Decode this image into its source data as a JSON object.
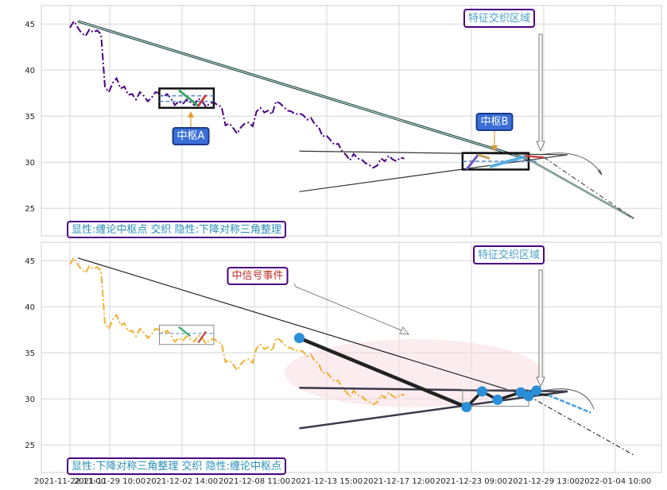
{
  "chart_data": [
    {
      "type": "line",
      "panel": "top",
      "ylim": [
        22,
        47
      ],
      "y_ticks": [
        25,
        30,
        35,
        40,
        45
      ],
      "x_tick_labels": [
        "2021-11-22 11:00",
        "2021-11-29 10:00",
        "2021-12-02 14:00",
        "2021-12-08 11:00",
        "2021-12-13 15:00",
        "2021-12-17 12:00",
        "2021-12-23 09:00",
        "2021-12-29 13:00",
        "2022-01-04 10:00"
      ],
      "grid": true,
      "price_line_color": "#4b0082",
      "price_series": [
        [
          0,
          44.6
        ],
        [
          1,
          45.3
        ],
        [
          2,
          44.6
        ],
        [
          3,
          44.0
        ],
        [
          4,
          43.7
        ],
        [
          5,
          44.4
        ],
        [
          6,
          44.1
        ],
        [
          7,
          44.3
        ],
        [
          8,
          43.9
        ],
        [
          9,
          38.2
        ],
        [
          10,
          37.6
        ],
        [
          11,
          38.6
        ],
        [
          12,
          39.1
        ],
        [
          13,
          38.0
        ],
        [
          14,
          38.2
        ],
        [
          15,
          37.3
        ],
        [
          16,
          37.4
        ],
        [
          17,
          36.8
        ],
        [
          18,
          37.6
        ],
        [
          19,
          37.2
        ],
        [
          20,
          36.6
        ],
        [
          21,
          37.0
        ],
        [
          22,
          37.6
        ],
        [
          23,
          37.5
        ],
        [
          24,
          37.1
        ],
        [
          25,
          37.4
        ],
        [
          26,
          36.9
        ],
        [
          27,
          36.2
        ],
        [
          28,
          36.6
        ],
        [
          29,
          36.3
        ],
        [
          30,
          36.8
        ],
        [
          31,
          36.5
        ],
        [
          32,
          36.2
        ],
        [
          33,
          36.9
        ],
        [
          34,
          36.6
        ],
        [
          35,
          36.0
        ],
        [
          36,
          36.4
        ],
        [
          37,
          36.5
        ],
        [
          38,
          36.2
        ],
        [
          39,
          36.0
        ],
        [
          40,
          34.0
        ],
        [
          41,
          34.2
        ],
        [
          42,
          33.7
        ],
        [
          43,
          33.1
        ],
        [
          44,
          33.8
        ],
        [
          45,
          34.2
        ],
        [
          46,
          34.3
        ],
        [
          47,
          33.9
        ],
        [
          48,
          35.5
        ],
        [
          49,
          35.9
        ],
        [
          50,
          35.4
        ],
        [
          51,
          35.6
        ],
        [
          52,
          35.2
        ],
        [
          53,
          36.6
        ],
        [
          54,
          36.4
        ],
        [
          55,
          36.0
        ],
        [
          56,
          35.6
        ],
        [
          57,
          35.5
        ],
        [
          58,
          35.2
        ],
        [
          59,
          35.3
        ],
        [
          60,
          35.1
        ],
        [
          61,
          34.6
        ],
        [
          62,
          34.8
        ],
        [
          63,
          34.1
        ],
        [
          64,
          33.8
        ],
        [
          65,
          32.8
        ],
        [
          66,
          32.9
        ],
        [
          67,
          32.4
        ],
        [
          68,
          31.9
        ],
        [
          69,
          32.0
        ],
        [
          70,
          31.2
        ],
        [
          71,
          30.8
        ],
        [
          72,
          30.2
        ],
        [
          73,
          30.9
        ],
        [
          74,
          30.4
        ],
        [
          75,
          30.3
        ],
        [
          76,
          29.9
        ],
        [
          77,
          29.7
        ],
        [
          78,
          29.4
        ],
        [
          79,
          29.6
        ],
        [
          80,
          30.4
        ],
        [
          81,
          30.1
        ],
        [
          82,
          30.7
        ],
        [
          83,
          30.3
        ],
        [
          84,
          30.1
        ],
        [
          85,
          30.5
        ],
        [
          86,
          30.4
        ]
      ],
      "legend_text": "显性:缠论中枢点 交织 隐性:下降对称三角整理",
      "annotations": [
        {
          "text": "特征交织区域",
          "color": "#4aa0c8",
          "border": "#4b0082",
          "fill": "#ffffff"
        },
        {
          "text": "中枢A",
          "color": "#ffffff",
          "border": "#1b3a8a",
          "fill": "#3a6fd8"
        },
        {
          "text": "中枢B",
          "color": "#ffffff",
          "border": "#1b3a8a",
          "fill": "#3a6fd8"
        }
      ]
    },
    {
      "type": "line",
      "panel": "bottom",
      "ylim": [
        22,
        47
      ],
      "y_ticks": [
        25,
        30,
        35,
        40,
        45
      ],
      "x_tick_labels": [
        "2021-11-22 11:00",
        "2021-11-29 10:00",
        "2021-12-02 14:00",
        "2021-12-08 11:00",
        "2021-12-13 15:00",
        "2021-12-17 12:00",
        "2021-12-23 09:00",
        "2021-12-29 13:00",
        "2022-01-04 10:00"
      ],
      "grid": true,
      "price_line_color": "#f0b030",
      "price_series": [
        [
          0,
          44.6
        ],
        [
          1,
          45.3
        ],
        [
          2,
          44.6
        ],
        [
          3,
          44.0
        ],
        [
          4,
          43.7
        ],
        [
          5,
          44.4
        ],
        [
          6,
          44.1
        ],
        [
          7,
          44.3
        ],
        [
          8,
          43.9
        ],
        [
          9,
          38.2
        ],
        [
          10,
          37.6
        ],
        [
          11,
          38.6
        ],
        [
          12,
          39.1
        ],
        [
          13,
          38.0
        ],
        [
          14,
          38.2
        ],
        [
          15,
          37.3
        ],
        [
          16,
          37.4
        ],
        [
          17,
          36.8
        ],
        [
          18,
          37.6
        ],
        [
          19,
          37.2
        ],
        [
          20,
          36.6
        ],
        [
          21,
          37.0
        ],
        [
          22,
          37.6
        ],
        [
          23,
          37.5
        ],
        [
          24,
          37.1
        ],
        [
          25,
          37.4
        ],
        [
          26,
          36.9
        ],
        [
          27,
          36.2
        ],
        [
          28,
          36.6
        ],
        [
          29,
          36.3
        ],
        [
          30,
          36.8
        ],
        [
          31,
          36.5
        ],
        [
          32,
          36.2
        ],
        [
          33,
          36.9
        ],
        [
          34,
          36.6
        ],
        [
          35,
          36.0
        ],
        [
          36,
          36.4
        ],
        [
          37,
          36.5
        ],
        [
          38,
          36.2
        ],
        [
          39,
          36.0
        ],
        [
          40,
          34.0
        ],
        [
          41,
          34.2
        ],
        [
          42,
          33.7
        ],
        [
          43,
          33.1
        ],
        [
          44,
          33.8
        ],
        [
          45,
          34.2
        ],
        [
          46,
          34.3
        ],
        [
          47,
          33.9
        ],
        [
          48,
          35.5
        ],
        [
          49,
          35.9
        ],
        [
          50,
          35.4
        ],
        [
          51,
          35.6
        ],
        [
          52,
          35.2
        ],
        [
          53,
          36.6
        ],
        [
          54,
          36.4
        ],
        [
          55,
          36.0
        ],
        [
          56,
          35.6
        ],
        [
          57,
          35.5
        ],
        [
          58,
          35.2
        ],
        [
          59,
          35.3
        ],
        [
          60,
          35.1
        ],
        [
          61,
          34.6
        ],
        [
          62,
          34.8
        ],
        [
          63,
          34.1
        ],
        [
          64,
          33.8
        ],
        [
          65,
          32.8
        ],
        [
          66,
          32.9
        ],
        [
          67,
          32.4
        ],
        [
          68,
          31.9
        ],
        [
          69,
          32.0
        ],
        [
          70,
          31.2
        ],
        [
          71,
          30.8
        ],
        [
          72,
          30.2
        ],
        [
          73,
          30.9
        ],
        [
          74,
          30.4
        ],
        [
          75,
          30.3
        ],
        [
          76,
          29.9
        ],
        [
          77,
          29.7
        ],
        [
          78,
          29.4
        ],
        [
          79,
          29.6
        ],
        [
          80,
          30.4
        ],
        [
          81,
          30.1
        ],
        [
          82,
          30.7
        ],
        [
          83,
          30.3
        ],
        [
          84,
          30.1
        ],
        [
          85,
          30.5
        ],
        [
          86,
          30.4
        ]
      ],
      "legend_text": "显性:下降对称三角整理 交织 隐性:缠论中枢点",
      "pivot_points": [
        [
          59,
          36.6
        ],
        [
          102,
          29.1
        ],
        [
          106,
          30.8
        ],
        [
          110,
          29.9
        ],
        [
          116,
          30.7
        ],
        [
          118,
          30.3
        ],
        [
          120,
          30.9
        ]
      ],
      "annotations": [
        {
          "text": "特征交织区域",
          "color": "#4aa0c8",
          "border": "#4b0082",
          "fill": "#ffffff"
        },
        {
          "text": "中信号事件",
          "color": "#c03030",
          "border": "#4b0082",
          "fill": "#ffffff"
        }
      ]
    }
  ]
}
